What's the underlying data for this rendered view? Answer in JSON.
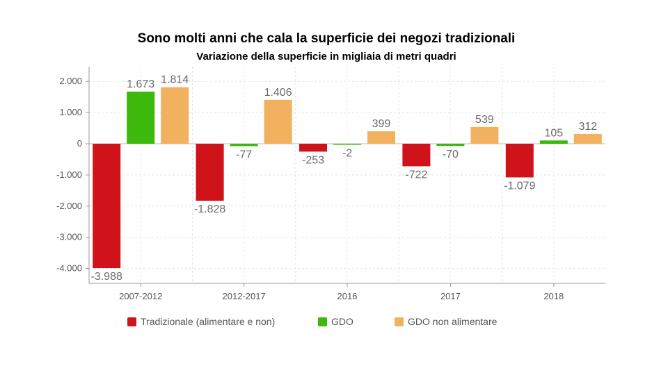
{
  "chart_data": {
    "type": "bar",
    "title": "Sono molti anni che cala la superficie dei negozi tradizionali",
    "subtitle": "Variazione della superficie in migliaia di metri quadri",
    "categories": [
      "2007-2012",
      "2012-2017",
      "2016",
      "2017",
      "2018"
    ],
    "series": [
      {
        "name": "Tradizionale (alimentare e non)",
        "color": "#d0121a",
        "values": [
          -3988,
          -1828,
          -253,
          -722,
          -1079
        ],
        "labels": [
          "-3.988",
          "-1.828",
          "-253",
          "-722",
          "-1.079"
        ]
      },
      {
        "name": "GDO",
        "color": "#3db80c",
        "values": [
          1673,
          -77,
          -2,
          -70,
          105
        ],
        "labels": [
          "1.673",
          "-77",
          "-2",
          "-70",
          "105"
        ]
      },
      {
        "name": "GDO non alimentare",
        "color": "#f2b15f",
        "values": [
          1814,
          1406,
          399,
          539,
          312
        ],
        "labels": [
          "1.814",
          "1.406",
          "399",
          "539",
          "312"
        ]
      }
    ],
    "y_ticks": [
      {
        "value": 2000,
        "label": "2.000"
      },
      {
        "value": 1000,
        "label": "1.000"
      },
      {
        "value": 0,
        "label": "0"
      },
      {
        "value": -1000,
        "label": "-1.000"
      },
      {
        "value": -2000,
        "label": "-2.000"
      },
      {
        "value": -3000,
        "label": "-3.000"
      },
      {
        "value": -4000,
        "label": "-4.000"
      }
    ],
    "ylim": [
      -4500,
      2500
    ],
    "grid": true,
    "legend_position": "bottom"
  }
}
